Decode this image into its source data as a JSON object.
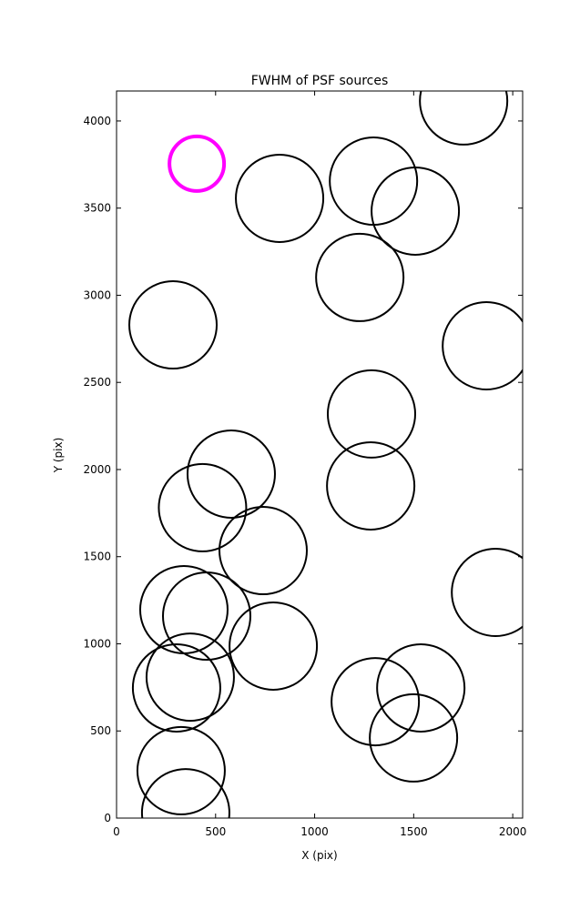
{
  "chart_data": {
    "type": "scatter",
    "title": "FWHM of PSF sources",
    "x_label": "X (pix)",
    "y_label": "Y (pix)",
    "xlim": [
      0,
      2050
    ],
    "ylim": [
      0,
      4172
    ],
    "xticks": [
      0,
      500,
      1000,
      1500,
      2000
    ],
    "yticks": [
      0,
      500,
      1000,
      1500,
      2000,
      2500,
      3000,
      3500,
      4000
    ],
    "marker": "open-circle",
    "series": [
      {
        "color": "#000000",
        "linewidth": 2,
        "x": [
          823,
          1297,
          1508,
          1752,
          1228,
          285,
          1867,
          1287,
          579,
          1283,
          434,
          740,
          1913,
          340,
          455,
          791,
          372,
          303,
          1306,
          1536,
          1499,
          326,
          349
        ],
        "values": [
          3556,
          3655,
          3483,
          4115,
          3102,
          2830,
          2710,
          2319,
          1974,
          1906,
          1781,
          1535,
          1295,
          1196,
          1159,
          987,
          809,
          747,
          668,
          747,
          460,
          272,
          31
        ]
      },
      {
        "color": "#ff00ff",
        "linewidth": 4,
        "x": [
          405
        ],
        "values": [
          3755
        ]
      }
    ]
  }
}
